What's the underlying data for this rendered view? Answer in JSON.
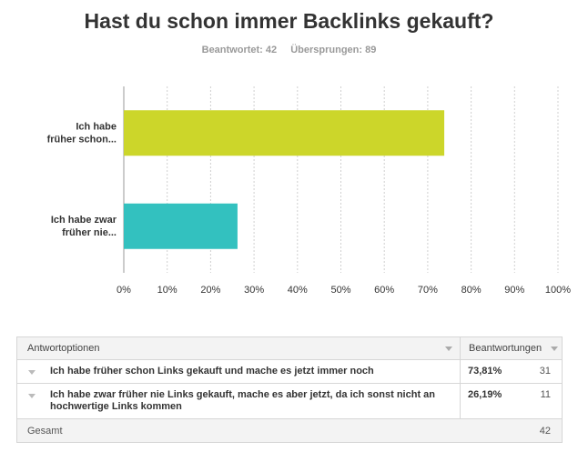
{
  "title": "Hast du schon immer Backlinks gekauft?",
  "stats": {
    "answered": "Beantwortet: 42",
    "skipped": "Übersprungen: 89"
  },
  "chart_data": {
    "type": "bar",
    "orientation": "horizontal",
    "categories": [
      "Ich habe früher schon...",
      "Ich habe zwar früher nie..."
    ],
    "category_lines": [
      [
        "Ich habe",
        "früher schon..."
      ],
      [
        "Ich habe zwar",
        "früher nie..."
      ]
    ],
    "values": [
      73.81,
      26.19
    ],
    "colors": [
      "#ccd62a",
      "#33c1bf"
    ],
    "xlim": [
      0,
      100
    ],
    "xticks": [
      "0%",
      "10%",
      "20%",
      "30%",
      "40%",
      "50%",
      "60%",
      "70%",
      "80%",
      "90%",
      "100%"
    ],
    "grid": "vertical dashed",
    "legend": "none"
  },
  "table": {
    "headers": {
      "options": "Antwortoptionen",
      "responses": "Beantwortungen"
    },
    "rows": [
      {
        "label": "Ich habe früher schon Links gekauft und mache es jetzt immer noch",
        "percent": "73,81%",
        "count": "31"
      },
      {
        "label": "Ich habe zwar früher nie Links gekauft, mache es aber jetzt, da ich sonst nicht an hochwertige Links kommen",
        "percent": "26,19%",
        "count": "11"
      }
    ],
    "total_label": "Gesamt",
    "total_count": "42"
  }
}
